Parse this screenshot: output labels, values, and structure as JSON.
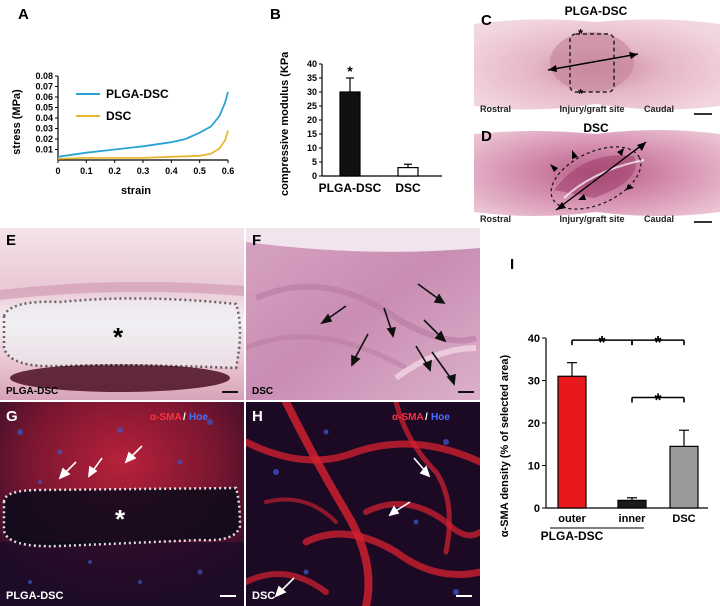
{
  "panels": {
    "A": "A",
    "B": "B",
    "C": "C",
    "D": "D",
    "E": "E",
    "F": "F",
    "G": "G",
    "H": "H",
    "I": "I"
  },
  "panel_c": {
    "title": "PLGA-DSC",
    "rostral": "Rostral",
    "site": "Injury/graft site",
    "caudal": "Caudal"
  },
  "panel_d": {
    "title": "DSC",
    "rostral": "Rostral",
    "site": "Injury/graft site",
    "caudal": "Caudal"
  },
  "panel_e": {
    "caption": "PLGA-DSC"
  },
  "panel_f": {
    "caption": "DSC"
  },
  "panel_g": {
    "caption": "PLGA-DSC",
    "stain_1": "α-SMA",
    "sep": "/",
    "stain_2": "Hoe"
  },
  "panel_h": {
    "caption": "DSC",
    "stain_1": "α-SMA",
    "sep": "/",
    "stain_2": "Hoe"
  },
  "asterisk": "*",
  "chart_data": [
    {
      "type": "line",
      "panel": "A",
      "xlabel": "strain",
      "ylabel": "stress (MPa)",
      "xlim": [
        0,
        0.6
      ],
      "ylim": [
        0,
        0.08
      ],
      "x_ticks": [
        "0",
        "0.1",
        "0.2",
        "0.3",
        "0.4",
        "0.5",
        "0.6"
      ],
      "y_ticks": [
        "0.01",
        "0.02",
        "0.03",
        "0.04",
        "0.05",
        "0.06",
        "0.07",
        "0.08"
      ],
      "legend": "top-left",
      "series": [
        {
          "name": "PLGA-DSC",
          "color": "#2aa3d6",
          "points": [
            [
              0,
              0.003
            ],
            [
              0.1,
              0.007
            ],
            [
              0.2,
              0.01
            ],
            [
              0.3,
              0.013
            ],
            [
              0.4,
              0.017
            ],
            [
              0.45,
              0.02
            ],
            [
              0.5,
              0.026
            ],
            [
              0.54,
              0.032
            ],
            [
              0.57,
              0.042
            ],
            [
              0.59,
              0.055
            ],
            [
              0.6,
              0.065
            ]
          ]
        },
        {
          "name": "DSC",
          "color": "#e8b830",
          "points": [
            [
              0,
              0.001
            ],
            [
              0.1,
              0.002
            ],
            [
              0.2,
              0.002
            ],
            [
              0.3,
              0.002
            ],
            [
              0.4,
              0.003
            ],
            [
              0.5,
              0.004
            ],
            [
              0.54,
              0.006
            ],
            [
              0.57,
              0.011
            ],
            [
              0.59,
              0.019
            ],
            [
              0.6,
              0.028
            ]
          ]
        }
      ]
    },
    {
      "type": "bar",
      "panel": "B",
      "ylabel": "compressive modulus (KPa)",
      "categories": [
        "PLGA-DSC",
        "DSC"
      ],
      "values": [
        30,
        3
      ],
      "errors": [
        5,
        1.2
      ],
      "colors": [
        "#111111",
        "#ffffff"
      ],
      "ylim": [
        0,
        40
      ],
      "y_ticks": [
        "0",
        "5",
        "10",
        "15",
        "20",
        "25",
        "30",
        "35",
        "40"
      ],
      "significance": [
        "*",
        ""
      ]
    },
    {
      "type": "bar",
      "panel": "I",
      "ylabel": "α-SMA density (% of selected area)",
      "categories": [
        "outer",
        "inner",
        "DSC"
      ],
      "group_label": "PLGA-DSC",
      "values": [
        31,
        1.8,
        14.5
      ],
      "errors": [
        3.2,
        0.6,
        3.8
      ],
      "colors": [
        "#e8181c",
        "#1a1a1a",
        "#9a9a9a"
      ],
      "ylim": [
        0,
        40
      ],
      "y_ticks": [
        "0",
        "10",
        "20",
        "30",
        "40"
      ],
      "brackets": [
        {
          "from": "outer",
          "to": "inner",
          "label": "*"
        },
        {
          "from": "inner",
          "to": "DSC",
          "label": "*"
        },
        {
          "from": "inner",
          "to": "DSC",
          "label": "*"
        }
      ]
    }
  ]
}
